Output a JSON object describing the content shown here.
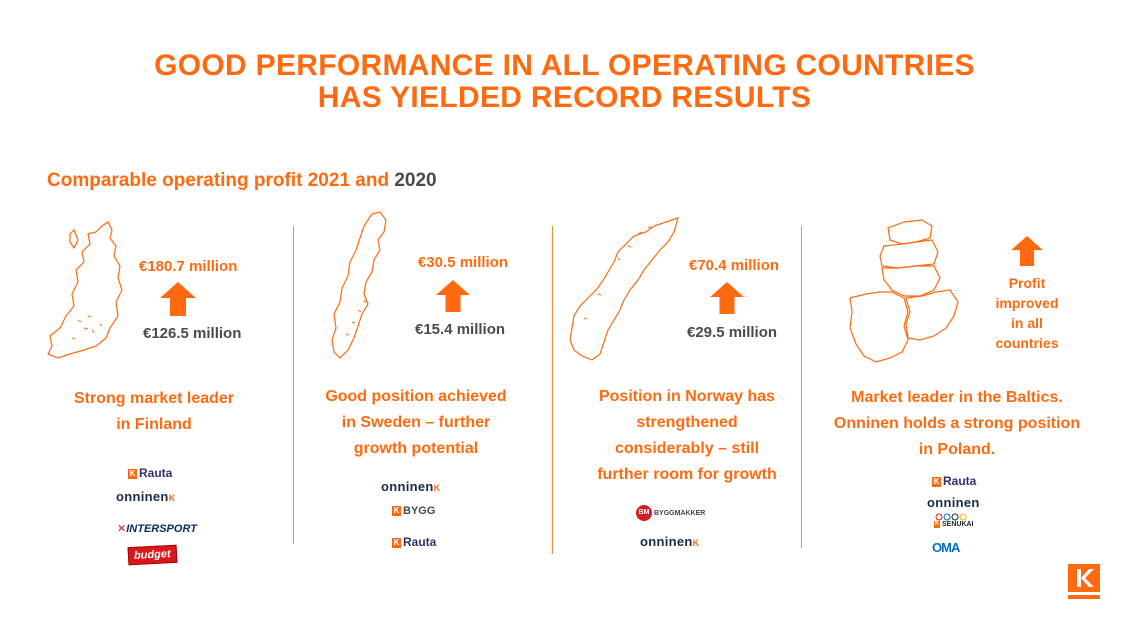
{
  "title": {
    "line1": "GOOD PERFORMANCE IN ALL OPERATING COUNTRIES",
    "line2": "HAS YIELDED RECORD RESULTS"
  },
  "subtitle": {
    "prefix": "Comparable operating profit 2021 and ",
    "year": "2020"
  },
  "colors": {
    "accent": "#ff6a10",
    "text_gray": "#4a4a4a"
  },
  "finland": {
    "value_2021": "€180.7 million",
    "value_2020": "€126.5  million",
    "desc_line1": "Strong market leader",
    "desc_line2": "in Finland",
    "logos": [
      "Rauta",
      "onninen",
      "INTERSPORT",
      "budget"
    ]
  },
  "sweden": {
    "value_2021": "€30.5 million",
    "value_2020": "€15.4 million",
    "desc_line1": "Good position achieved",
    "desc_line2": "in Sweden – further",
    "desc_line3": "growth potential",
    "logos": [
      "onninen",
      "BYGG",
      "Rauta"
    ]
  },
  "norway": {
    "value_2021": "€70.4 million",
    "value_2020": "€29.5 million",
    "desc_line1": "Position in Norway has",
    "desc_line2": "strengthened",
    "desc_line3": "considerably –  still",
    "desc_line4": "further room for growth",
    "logos": [
      "BYGGMAKKER",
      "onninen"
    ]
  },
  "baltics": {
    "profit_note_line1": "Profit",
    "profit_note_line2": "improved",
    "profit_note_line3": "in all",
    "profit_note_line4": "countries",
    "desc_line1": "Market leader in the Baltics.",
    "desc_line2": "Onninen holds a strong position",
    "desc_line3": "in Poland.",
    "logos": [
      "Rauta",
      "onninen",
      "SENUKAI",
      "OMA"
    ]
  },
  "icons": {
    "up_arrow": "up-arrow-icon",
    "kesko_logo": "kesko-k-logo"
  }
}
